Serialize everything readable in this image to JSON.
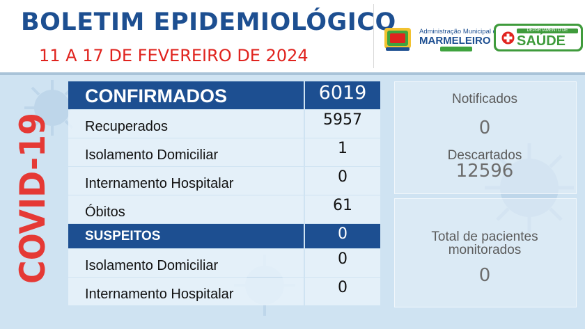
{
  "header": {
    "title": "BOLETIM EPIDEMIOLÓGICO",
    "subtitle": "11 A 17 DE FEVEREIRO DE 2024"
  },
  "logos": {
    "municipality_line1": "Administração Municipal de",
    "municipality_line2": "MARMELEIRO",
    "health_department_label": "DEPARTAMENTO DE",
    "health_name": "SAÚDE"
  },
  "vertical_label": "COVID-19",
  "confirmed": {
    "header_label": "CONFIRMADOS",
    "header_value": "6019",
    "rows": [
      {
        "label": "Recuperados",
        "value": "5957"
      },
      {
        "label": "Isolamento Domiciliar",
        "value": "1"
      },
      {
        "label": "Internamento Hospitalar",
        "value": "0"
      },
      {
        "label": "Óbitos",
        "value": "61"
      }
    ]
  },
  "suspected": {
    "header_label": "SUSPEITOS",
    "header_value": "0",
    "rows": [
      {
        "label": "Isolamento Domiciliar",
        "value": "0"
      },
      {
        "label": "Internamento Hospitalar",
        "value": "0"
      }
    ]
  },
  "side_panel": {
    "notified_label": "Notificados",
    "notified_value": "0",
    "discarded_label": "Descartados",
    "discarded_value": "12596",
    "monitored_label_line1": "Total de pacientes",
    "monitored_label_line2": "monitorados",
    "monitored_value": "0"
  },
  "colors": {
    "title_blue": "#1d4f91",
    "subtitle_red": "#e0231e",
    "covid_red": "#e53935",
    "header_row_blue": "#1d4f91",
    "background": "#cfe3f2",
    "health_green": "#3f9b3c"
  }
}
